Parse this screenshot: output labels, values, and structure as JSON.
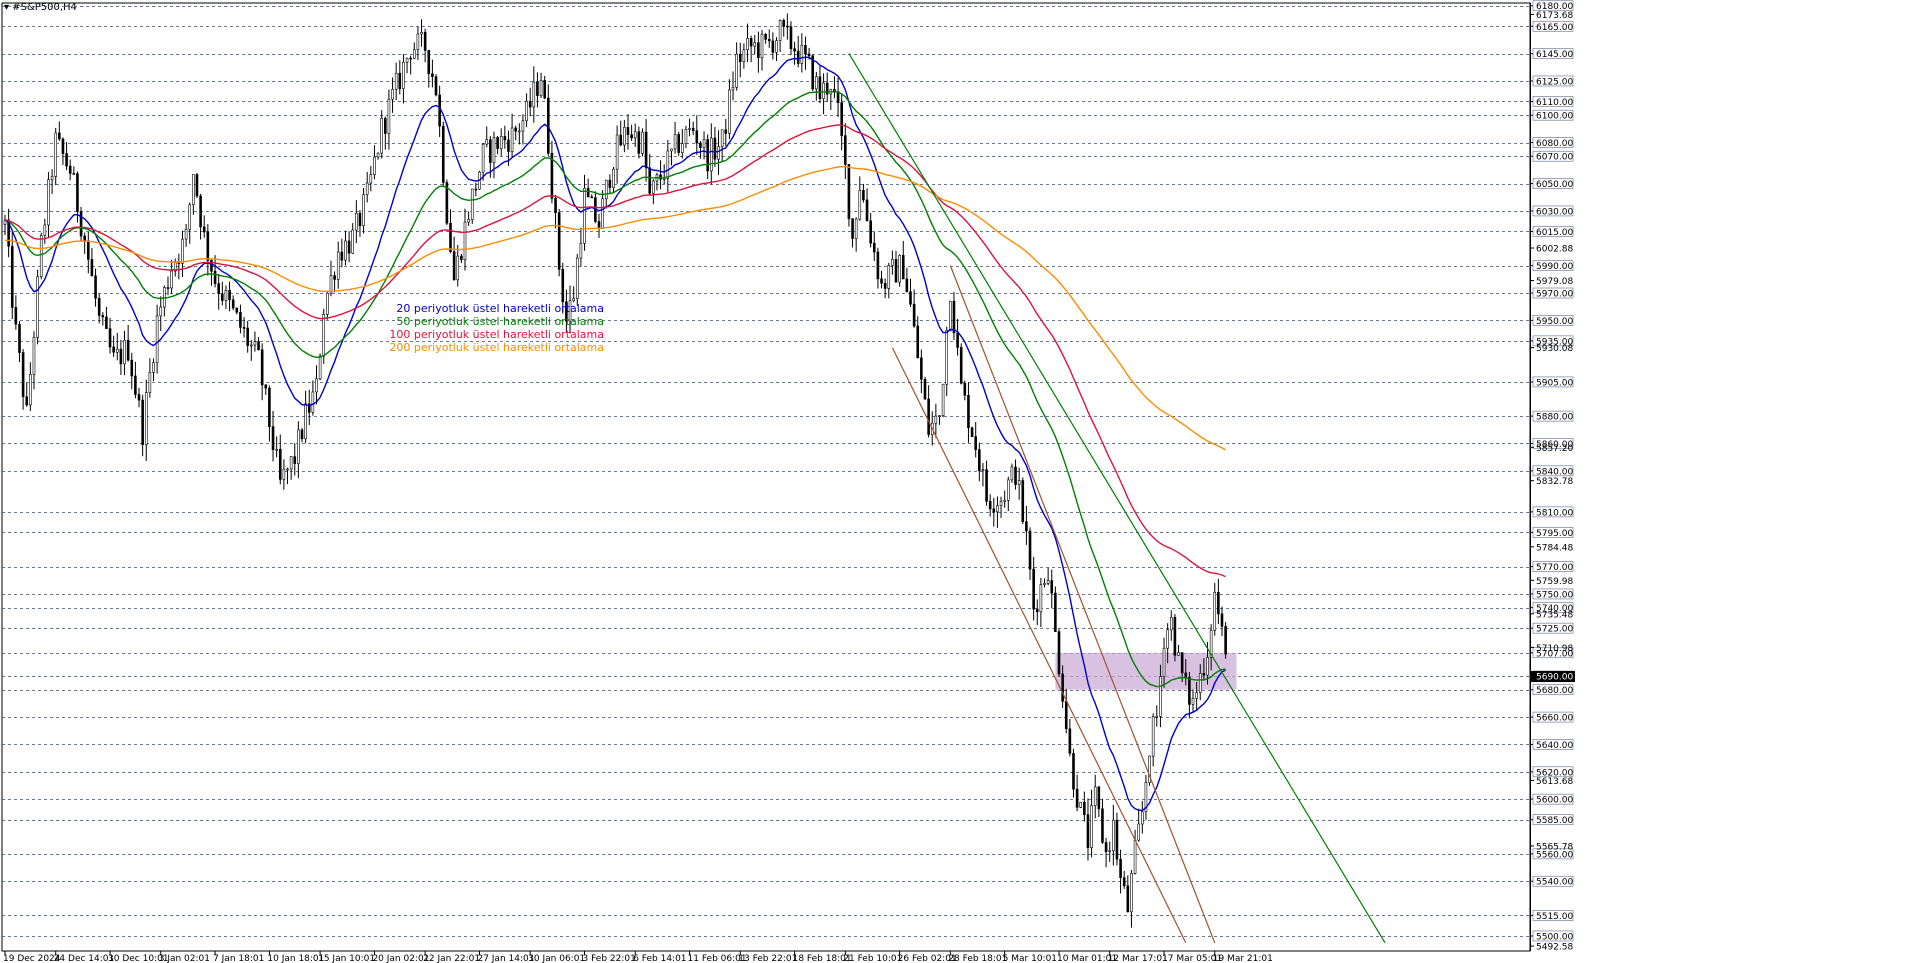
{
  "window": {
    "symbol": "#S&P500,H4"
  },
  "chart_data": {
    "type": "candlestick",
    "title": "#S&P500,H4",
    "ylim": [
      5489,
      6182
    ],
    "price_levels": [
      6180.0,
      6165.0,
      6145.0,
      6125.0,
      6110.0,
      6100.0,
      6080.0,
      6070.0,
      6050.0,
      6030.0,
      6015.0,
      5990.0,
      5970.0,
      5950.0,
      5935.0,
      5905.0,
      5880.0,
      5860.0,
      5840.0,
      5810.0,
      5795.0,
      5770.0,
      5750.0,
      5740.0,
      5725.0,
      5707.0,
      5690.0,
      5680.0,
      5660.0,
      5640.0,
      5620.0,
      5600.0,
      5585.0,
      5560.0,
      5540.0,
      5515.0,
      5500.0
    ],
    "scale_labels": [
      {
        "value": 6173.68,
        "text": "6173.68"
      },
      {
        "value": 6002.88,
        "text": "6002.88"
      },
      {
        "value": 5979.08,
        "text": "5979.08"
      },
      {
        "value": 5930.08,
        "text": "5930.08"
      },
      {
        "value": 5857.2,
        "text": "5857.20"
      },
      {
        "value": 5832.78,
        "text": "5832.78"
      },
      {
        "value": 5784.48,
        "text": "5784.48"
      },
      {
        "value": 5759.98,
        "text": "5759.98"
      },
      {
        "value": 5735.48,
        "text": "5735.48"
      },
      {
        "value": 5710.98,
        "text": "5710.98"
      },
      {
        "value": 5613.68,
        "text": "5613.68"
      },
      {
        "value": 5565.78,
        "text": "5565.78"
      },
      {
        "value": 5492.58,
        "text": "5492.58"
      }
    ],
    "x_ticks": [
      "19 Dec 2024",
      "24 Dec 14:01",
      "30 Dec 10:01",
      "3 Jan 02:01",
      "7 Jan 18:01",
      "10 Jan 18:01",
      "15 Jan 10:01",
      "20 Jan 02:01",
      "22 Jan 22:01",
      "27 Jan 14:01",
      "30 Jan 06:01",
      "3 Feb 22:01",
      "6 Feb 14:01",
      "11 Feb 06:01",
      "13 Feb 22:01",
      "18 Feb 18:01",
      "21 Feb 10:01",
      "26 Feb 02:01",
      "28 Feb 18:01",
      "5 Mar 10:01",
      "10 Mar 01:01",
      "12 Mar 17:01",
      "17 Mar 05:01",
      "19 Mar 21:01"
    ],
    "x_tick_index": [
      0,
      14,
      29,
      43,
      58,
      73,
      87,
      102,
      116,
      131,
      145,
      160,
      174,
      189,
      203,
      218,
      232,
      247,
      261,
      276,
      291,
      305,
      320,
      334
    ],
    "price_anchors": [
      [
        0,
        6020
      ],
      [
        3,
        5940
      ],
      [
        6,
        5880
      ],
      [
        10,
        6005
      ],
      [
        14,
        6080
      ],
      [
        18,
        6060
      ],
      [
        22,
        6010
      ],
      [
        26,
        5950
      ],
      [
        30,
        5920
      ],
      [
        34,
        5930
      ],
      [
        38,
        5870
      ],
      [
        42,
        5950
      ],
      [
        46,
        5990
      ],
      [
        50,
        6010
      ],
      [
        52,
        6060
      ],
      [
        55,
        6010
      ],
      [
        58,
        5980
      ],
      [
        62,
        5960
      ],
      [
        66,
        5940
      ],
      [
        70,
        5920
      ],
      [
        74,
        5860
      ],
      [
        76,
        5830
      ],
      [
        80,
        5850
      ],
      [
        83,
        5880
      ],
      [
        86,
        5900
      ],
      [
        88,
        5960
      ],
      [
        92,
        6000
      ],
      [
        96,
        6010
      ],
      [
        100,
        6040
      ],
      [
        104,
        6090
      ],
      [
        108,
        6120
      ],
      [
        112,
        6150
      ],
      [
        116,
        6150
      ],
      [
        119,
        6120
      ],
      [
        122,
        6030
      ],
      [
        124,
        5980
      ],
      [
        128,
        6030
      ],
      [
        132,
        6070
      ],
      [
        136,
        6080
      ],
      [
        140,
        6085
      ],
      [
        144,
        6100
      ],
      [
        148,
        6130
      ],
      [
        150,
        6080
      ],
      [
        153,
        5990
      ],
      [
        155,
        5950
      ],
      [
        157,
        5970
      ],
      [
        160,
        6040
      ],
      [
        164,
        6020
      ],
      [
        168,
        6070
      ],
      [
        172,
        6090
      ],
      [
        176,
        6080
      ],
      [
        178,
        6040
      ],
      [
        182,
        6060
      ],
      [
        186,
        6080
      ],
      [
        190,
        6090
      ],
      [
        194,
        6070
      ],
      [
        198,
        6080
      ],
      [
        202,
        6140
      ],
      [
        206,
        6150
      ],
      [
        210,
        6150
      ],
      [
        214,
        6160
      ],
      [
        218,
        6150
      ],
      [
        222,
        6135
      ],
      [
        225,
        6115
      ],
      [
        228,
        6125
      ],
      [
        230,
        6100
      ],
      [
        232,
        6060
      ],
      [
        234,
        6010
      ],
      [
        236,
        6050
      ],
      [
        240,
        6000
      ],
      [
        242,
        5975
      ],
      [
        245,
        5985
      ],
      [
        248,
        5990
      ],
      [
        250,
        5960
      ],
      [
        253,
        5905
      ],
      [
        255,
        5870
      ],
      [
        258,
        5880
      ],
      [
        261,
        5975
      ],
      [
        264,
        5900
      ],
      [
        268,
        5860
      ],
      [
        271,
        5820
      ],
      [
        275,
        5820
      ],
      [
        279,
        5840
      ],
      [
        282,
        5790
      ],
      [
        284,
        5740
      ],
      [
        288,
        5770
      ],
      [
        290,
        5720
      ],
      [
        292,
        5680
      ],
      [
        294,
        5630
      ],
      [
        297,
        5590
      ],
      [
        299,
        5570
      ],
      [
        301,
        5600
      ],
      [
        304,
        5560
      ],
      [
        306,
        5580
      ],
      [
        308,
        5540
      ],
      [
        310,
        5520
      ],
      [
        312,
        5560
      ],
      [
        314,
        5590
      ],
      [
        316,
        5640
      ],
      [
        318,
        5660
      ],
      [
        320,
        5720
      ],
      [
        322,
        5730
      ],
      [
        324,
        5700
      ],
      [
        326,
        5680
      ],
      [
        328,
        5670
      ],
      [
        330,
        5690
      ],
      [
        332,
        5710
      ],
      [
        334,
        5750
      ],
      [
        336,
        5720
      ],
      [
        337,
        5700
      ]
    ],
    "bars_count": 338,
    "highlight_zone": {
      "from": 5680,
      "to": 5707,
      "start_index": 290,
      "end_index": 340
    },
    "trendlines": [
      {
        "name": "downtrend-green",
        "color": "#008000",
        "p1": [
          233,
          6145
        ],
        "p2": [
          381,
          5495
        ]
      },
      {
        "name": "channel-brown-lower",
        "color": "#a0522d",
        "p1": [
          245,
          5930
        ],
        "p2": [
          326,
          5495
        ]
      },
      {
        "name": "channel-brown-upper",
        "color": "#a0522d",
        "p1": [
          261,
          5990
        ],
        "p2": [
          334,
          5495
        ]
      }
    ],
    "series": [
      {
        "name": "20 periyotluk üstel hareketli ortalama",
        "period": 20,
        "color": "#0000cc",
        "until_index": 338
      },
      {
        "name": "50 periyotluk üstel hareketli ortalama",
        "period": 50,
        "color": "#008000",
        "until_index": 338
      },
      {
        "name": "100 periyotluk üstel hareketli ortalama",
        "period": 100,
        "color": "#dc143c",
        "until_index": 338
      },
      {
        "name": "200 periyotluk üstel hareketli ortalama",
        "period": 200,
        "color": "#ff8c00",
        "until_index": 338
      }
    ],
    "current_price": {
      "value": 5690.0,
      "text": "5690.00"
    },
    "legend_placement": "center-left",
    "grid": "horizontal-dashed"
  }
}
